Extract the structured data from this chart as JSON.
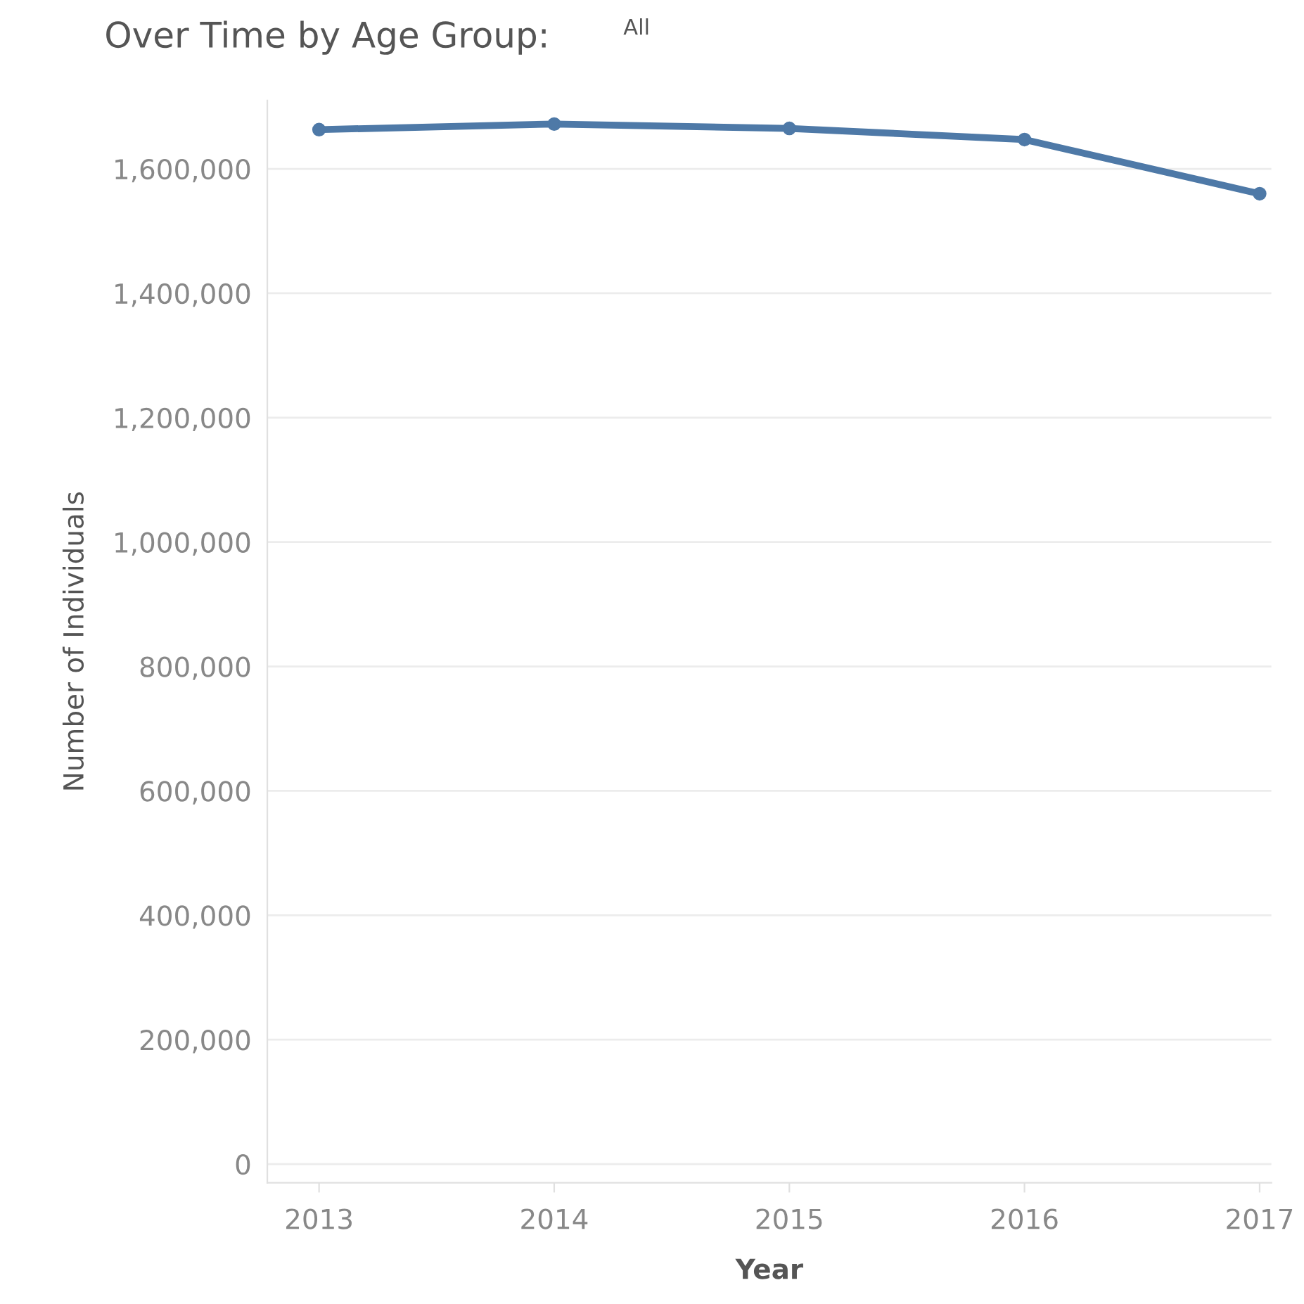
{
  "chart_data": {
    "type": "line",
    "title": "Over Time by Age Group:",
    "subtitle": "All",
    "xlabel": "Year",
    "ylabel": "Number of Individuals",
    "categories": [
      "2013",
      "2014",
      "2015",
      "2016",
      "2017"
    ],
    "series": [
      {
        "color": "#4e79a7",
        "values": [
          1663000,
          1672000,
          1665000,
          1647000,
          1560000
        ]
      }
    ],
    "ylim": [
      -30000,
      1710000
    ],
    "yticks": [
      {
        "value": 0,
        "label": "0"
      },
      {
        "value": 200000,
        "label": "200,000"
      },
      {
        "value": 400000,
        "label": "400,000"
      },
      {
        "value": 600000,
        "label": "600,000"
      },
      {
        "value": 800000,
        "label": "800,000"
      },
      {
        "value": 1000000,
        "label": "1,000,000"
      },
      {
        "value": 1200000,
        "label": "1,200,000"
      },
      {
        "value": 1400000,
        "label": "1,400,000"
      },
      {
        "value": 1600000,
        "label": "1,600,000"
      }
    ],
    "grid": "y",
    "marker": "circle",
    "line_style": "solid",
    "legend": false
  }
}
